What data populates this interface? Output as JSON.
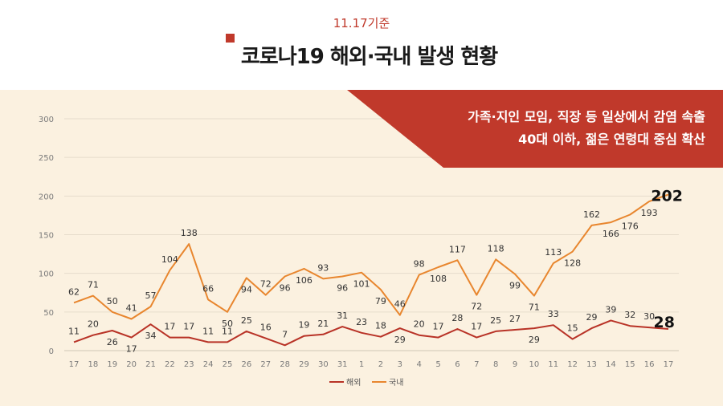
{
  "header": {
    "date_label": "11.17기준",
    "title": "코로나19 해외·국내 발생 현황"
  },
  "banner": {
    "line1": "가족·지인 모임, 직장 등 일상에서 감염 속출",
    "line2": "40대 이하, 젊은 연령대 중심 확산"
  },
  "colors": {
    "accent": "#c0392b",
    "overseas": "#b83226",
    "domestic": "#e8862e",
    "panel_bg": "#fbf1e0"
  },
  "chart_data": {
    "type": "line",
    "categories": [
      "17",
      "18",
      "19",
      "20",
      "21",
      "22",
      "23",
      "24",
      "25",
      "26",
      "27",
      "28",
      "29",
      "30",
      "31",
      "1",
      "2",
      "3",
      "4",
      "5",
      "6",
      "7",
      "8",
      "9",
      "10",
      "11",
      "12",
      "13",
      "14",
      "15",
      "16",
      "17"
    ],
    "ylim": [
      0,
      300
    ],
    "yticks": [
      0,
      50,
      100,
      150,
      200,
      250,
      300
    ],
    "grid": true,
    "legend_position": "bottom",
    "series": [
      {
        "name": "해외",
        "color": "#b83226",
        "values": [
          11,
          20,
          26,
          17,
          34,
          17,
          17,
          11,
          11,
          25,
          16,
          7,
          19,
          21,
          31,
          23,
          18,
          29,
          20,
          17,
          28,
          17,
          25,
          27,
          29,
          33,
          15,
          29,
          39,
          32,
          30,
          28
        ],
        "label_pos": [
          "a",
          "a",
          "b",
          "b",
          "b",
          "a",
          "a",
          "a",
          "a",
          "a",
          "a",
          "a",
          "a",
          "a",
          "a",
          "a",
          "a",
          "b",
          "a",
          "a",
          "a",
          "a",
          "a",
          "a",
          "b",
          "a",
          "a",
          "a",
          "a",
          "a",
          "a",
          "r"
        ]
      },
      {
        "name": "국내",
        "color": "#e8862e",
        "values": [
          62,
          71,
          50,
          41,
          57,
          104,
          138,
          66,
          50,
          94,
          72,
          96,
          106,
          93,
          96,
          101,
          79,
          46,
          98,
          108,
          117,
          72,
          118,
          99,
          71,
          113,
          128,
          162,
          166,
          176,
          193,
          202
        ],
        "label_pos": [
          "a",
          "a",
          "a",
          "a",
          "a",
          "a",
          "a",
          "a",
          "b",
          "b",
          "a",
          "b",
          "b",
          "a",
          "b",
          "b",
          "b",
          "a",
          "a",
          "b",
          "a",
          "b",
          "a",
          "b",
          "b",
          "a",
          "b",
          "a",
          "b",
          "b",
          "b",
          "r"
        ]
      }
    ],
    "end_labels": [
      "28",
      "202"
    ]
  }
}
